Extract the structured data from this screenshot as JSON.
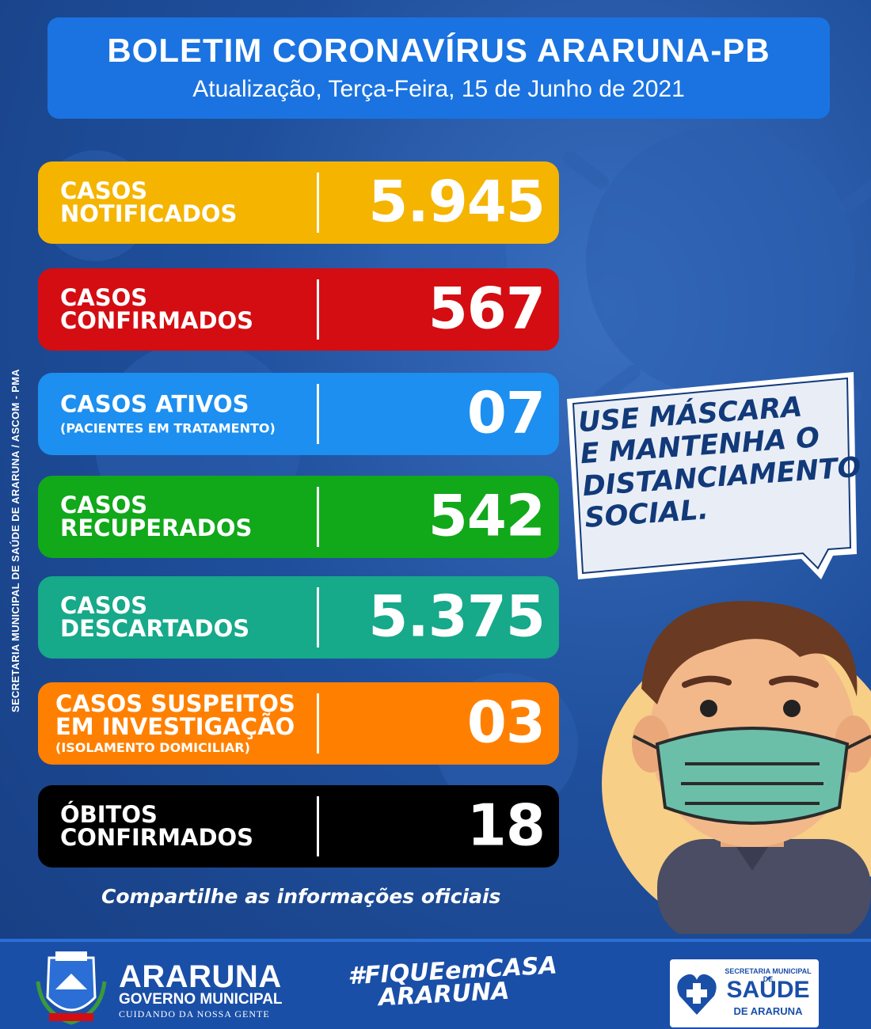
{
  "header": {
    "title": "BOLETIM CORONAVÍRUS ARARUNA-PB",
    "subtitle": "Atualização, Terça-Feira, 15 de Junho de 2021"
  },
  "side_credit": "SECRETARIA MUNICIPAL DE SAÚDE DE ARARUNA / ASCOM - PMA",
  "stats": [
    {
      "line1": "CASOS",
      "line2": "NOTIFICADOS",
      "sub": "",
      "value": "5.945",
      "color": "#f5b400"
    },
    {
      "line1": "CASOS",
      "line2": "CONFIRMADOS",
      "sub": "",
      "value": "567",
      "color": "#d40d12"
    },
    {
      "line1": "CASOS ATIVOS",
      "line2": "",
      "sub": "(PACIENTES EM TRATAMENTO)",
      "value": "07",
      "color": "#1c8ff0"
    },
    {
      "line1": "CASOS",
      "line2": "RECUPERADOS",
      "sub": "",
      "value": "542",
      "color": "#11a81a"
    },
    {
      "line1": "CASOS",
      "line2": "DESCARTADOS",
      "sub": "",
      "value": "5.375",
      "color": "#16a98a"
    },
    {
      "line1": "CASOS SUSPEITOS",
      "line2": "EM INVESTIGAÇÃO",
      "sub": "(ISOLAMENTO DOMICILIAR)",
      "value": "03",
      "color": "#ff8000"
    },
    {
      "line1": "ÓBITOS",
      "line2": "CONFIRMADOS",
      "sub": "",
      "value": "18",
      "color": "#000000"
    }
  ],
  "share_text": "Compartilhe as informações oficiais",
  "speech_bubble": {
    "lines": [
      "USE MÁSCARA",
      "E MANTENHA O",
      "DISTANCIAMENTO",
      "SOCIAL."
    ]
  },
  "mascot_icon": "masked-boy-illustration",
  "footer": {
    "city_name": "ARARUNA",
    "city_gov": "GOVERNO MUNICIPAL",
    "city_motto": "CUIDANDO DA NOSSA GENTE",
    "crest_icon": "municipal-crest-icon",
    "hashtag_line1": "#FIQUEemCASA",
    "hashtag_line2": "ARARUNA",
    "health_top": "SECRETARIA MUNICIPAL DE",
    "health_main": "SAÚDE",
    "health_bottom": "DE ARARUNA",
    "health_icon": "health-heart-cross-icon"
  }
}
